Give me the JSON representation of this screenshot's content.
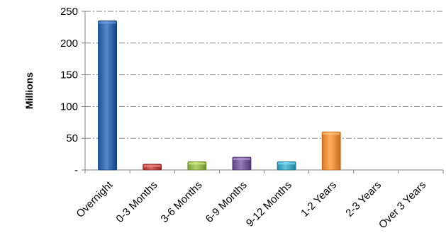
{
  "chart_data": {
    "type": "bar",
    "title": "",
    "xlabel": "",
    "ylabel": "Millions",
    "categories": [
      "Overnight",
      "0-3 Months",
      "3-6 Months",
      "6-9 Months",
      "9-12 Months",
      "1-2 Years",
      "2-3 Years",
      "Over 3 Years"
    ],
    "values": [
      235,
      9,
      13,
      20,
      13,
      60,
      0,
      0
    ],
    "bar_colors": [
      "#3d6fb3",
      "#c0504d",
      "#9bbb59",
      "#8064a2",
      "#4bacc6",
      "#f79646",
      "#3d6fb3",
      "#3d6fb3"
    ],
    "ylim": [
      0,
      250
    ],
    "y_ticks": [
      {
        "value": 0,
        "label": "-"
      },
      {
        "value": 50,
        "label": "50"
      },
      {
        "value": 100,
        "label": "100"
      },
      {
        "value": 150,
        "label": "150"
      },
      {
        "value": 200,
        "label": "200"
      },
      {
        "value": 250,
        "label": "250"
      }
    ],
    "grid": true,
    "grid_style": "dash-dot",
    "legend": "none"
  }
}
